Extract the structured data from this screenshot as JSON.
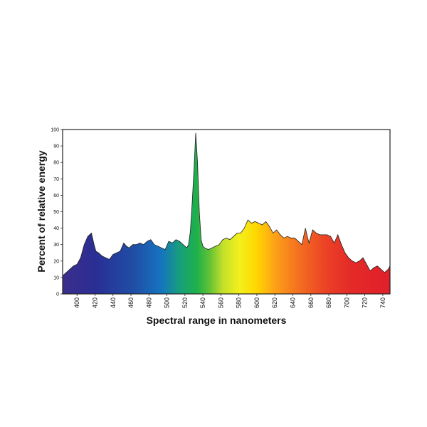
{
  "chart_data": {
    "type": "area",
    "title": "",
    "xlabel": "Spectral range in nanometers",
    "ylabel": "Percent of relative energy",
    "xlim": [
      384,
      748
    ],
    "ylim": [
      0,
      100
    ],
    "x_ticks": [
      400,
      420,
      440,
      460,
      480,
      500,
      520,
      540,
      560,
      580,
      600,
      620,
      640,
      660,
      680,
      700,
      720,
      740
    ],
    "y_ticks": [
      0,
      10,
      20,
      30,
      40,
      50,
      60,
      70,
      80,
      90,
      100
    ],
    "grid": false,
    "legend": "none",
    "fill": "spectral rainbow gradient (violet to red)",
    "series": [
      {
        "x": [
          384,
          388,
          392,
          396,
          400,
          404,
          408,
          412,
          416,
          419,
          421,
          424,
          428,
          432,
          436,
          440,
          444,
          448,
          452,
          455,
          458,
          462,
          466,
          470,
          474,
          478,
          482,
          486,
          490,
          494,
          498,
          502,
          506,
          510,
          514,
          518,
          522,
          524,
          526,
          528,
          530,
          532,
          534,
          536,
          538,
          540,
          542,
          546,
          550,
          554,
          558,
          562,
          566,
          570,
          574,
          578,
          582,
          586,
          590,
          594,
          598,
          602,
          606,
          610,
          614,
          618,
          622,
          626,
          630,
          634,
          638,
          642,
          646,
          650,
          654,
          656,
          658,
          662,
          666,
          670,
          674,
          678,
          682,
          686,
          690,
          694,
          698,
          702,
          706,
          710,
          714,
          718,
          722,
          726,
          730,
          734,
          738,
          742,
          746,
          748
        ],
        "values": [
          11,
          13,
          15,
          17,
          18,
          22,
          30,
          35,
          37,
          30,
          26,
          25,
          23,
          22,
          21,
          24,
          25,
          26,
          31,
          29,
          28,
          30,
          30,
          31,
          30,
          32,
          33,
          30,
          29,
          28,
          27,
          32,
          31,
          33,
          32,
          30,
          28,
          30,
          38,
          55,
          75,
          98,
          80,
          50,
          33,
          29,
          28,
          27,
          28,
          29,
          30,
          33,
          34,
          33,
          35,
          37,
          37,
          40,
          45,
          43,
          44,
          43,
          42,
          44,
          41,
          37,
          39,
          36,
          34,
          35,
          34,
          34,
          32,
          30,
          40,
          35,
          31,
          39,
          37,
          36,
          36,
          36,
          35,
          31,
          36,
          30,
          25,
          22,
          20,
          19,
          20,
          22,
          18,
          14,
          16,
          17,
          15,
          13,
          15,
          17
        ]
      }
    ]
  }
}
